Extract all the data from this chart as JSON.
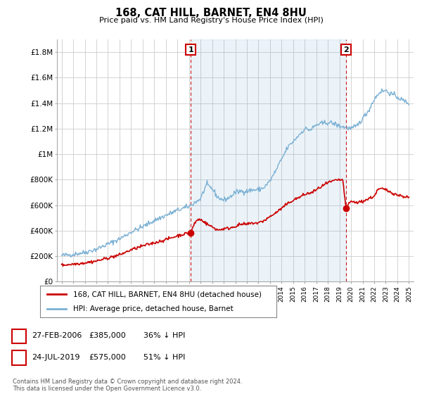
{
  "title": "168, CAT HILL, BARNET, EN4 8HU",
  "subtitle": "Price paid vs. HM Land Registry's House Price Index (HPI)",
  "legend_line1": "168, CAT HILL, BARNET, EN4 8HU (detached house)",
  "legend_line2": "HPI: Average price, detached house, Barnet",
  "annotation1_date": "27-FEB-2006",
  "annotation1_price": "£385,000",
  "annotation1_note": "36% ↓ HPI",
  "annotation2_date": "24-JUL-2019",
  "annotation2_price": "£575,000",
  "annotation2_note": "51% ↓ HPI",
  "footer": "Contains HM Land Registry data © Crown copyright and database right 2024.\nThis data is licensed under the Open Government Licence v3.0.",
  "price_color": "#cc0000",
  "hpi_color": "#7ab0d4",
  "hpi_fill_color": "#ddeeff",
  "vline_color": "#cc0000",
  "ylim": [
    0,
    1900000
  ],
  "yticks": [
    0,
    200000,
    400000,
    600000,
    800000,
    1000000,
    1200000,
    1400000,
    1600000,
    1800000
  ],
  "ytick_labels": [
    "£0",
    "£200K",
    "£400K",
    "£600K",
    "£800K",
    "£1M",
    "£1.2M",
    "£1.4M",
    "£1.6M",
    "£1.8M"
  ],
  "purchase1_year": 2006.15,
  "purchase1_value": 385000,
  "purchase2_year": 2019.56,
  "purchase2_value": 575000,
  "bg_color": "#ffffff",
  "grid_color": "#cccccc"
}
